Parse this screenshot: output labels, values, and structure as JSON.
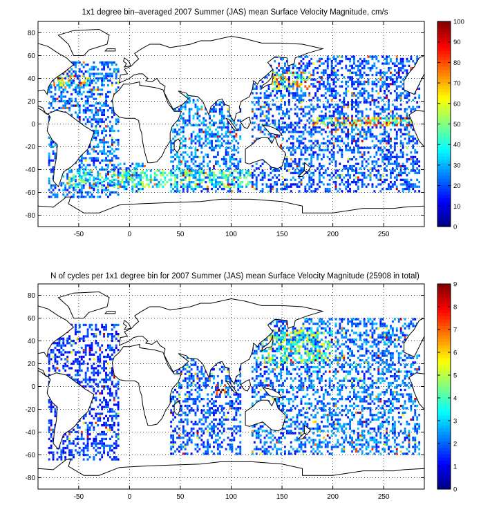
{
  "chart_data": [
    {
      "type": "heatmap",
      "title": "1x1 degree bin–averaged 2007 Summer (JAS) mean Surface Velocity Magnitude, cm/s",
      "xlim": [
        -90,
        290
      ],
      "ylim": [
        -90,
        90
      ],
      "x_ticks": [
        -50,
        0,
        50,
        100,
        150,
        200,
        250
      ],
      "y_ticks": [
        80,
        60,
        40,
        20,
        0,
        -20,
        -40,
        -60,
        -80
      ],
      "grid": true,
      "colormap": "jet",
      "colorbar_range": [
        0,
        100
      ],
      "colorbar_ticks": [
        0,
        10,
        20,
        30,
        40,
        50,
        60,
        70,
        80,
        90,
        100
      ],
      "regions": [
        {
          "lon": [
            -80,
            -10
          ],
          "lat": [
            -65,
            55
          ],
          "value": 22
        },
        {
          "lon": [
            -10,
            15
          ],
          "lat": [
            -60,
            -35
          ],
          "value": 25
        },
        {
          "lon": [
            40,
            110
          ],
          "lat": [
            -60,
            25
          ],
          "value": 24
        },
        {
          "lon": [
            120,
            285
          ],
          "lat": [
            -60,
            60
          ],
          "value": 20
        },
        {
          "lon": [
            140,
            180
          ],
          "lat": [
            30,
            45
          ],
          "value": 55
        },
        {
          "lon": [
            180,
            280
          ],
          "lat": [
            -2,
            5
          ],
          "value": 60
        },
        {
          "lon": [
            -75,
            -40
          ],
          "lat": [
            33,
            42
          ],
          "value": 60
        },
        {
          "lon": [
            -60,
            120
          ],
          "lat": [
            -56,
            -40
          ],
          "value": 40
        }
      ]
    },
    {
      "type": "heatmap",
      "title": "N of cycles per 1x1 degree bin for 2007 Summer (JAS) mean Surface Velocity Magnitude (25908 in total)",
      "xlim": [
        -90,
        290
      ],
      "ylim": [
        -90,
        90
      ],
      "x_ticks": [
        -50,
        0,
        50,
        100,
        150,
        200,
        250
      ],
      "y_ticks": [
        80,
        60,
        40,
        20,
        0,
        -20,
        -40,
        -60,
        -80
      ],
      "grid": true,
      "colormap": "jet",
      "colorbar_range": [
        0,
        9
      ],
      "colorbar_ticks": [
        0,
        1,
        2,
        3,
        4,
        5,
        6,
        7,
        8,
        9
      ],
      "regions": [
        {
          "lon": [
            -80,
            -10
          ],
          "lat": [
            -65,
            55
          ],
          "value": 1.5
        },
        {
          "lon": [
            40,
            110
          ],
          "lat": [
            -60,
            25
          ],
          "value": 1.8
        },
        {
          "lon": [
            120,
            285
          ],
          "lat": [
            -60,
            60
          ],
          "value": 2
        },
        {
          "lon": [
            130,
            200
          ],
          "lat": [
            20,
            50
          ],
          "value": 4
        },
        {
          "lon": [
            85,
            95
          ],
          "lat": [
            -8,
            2
          ],
          "value": 7
        }
      ]
    }
  ]
}
